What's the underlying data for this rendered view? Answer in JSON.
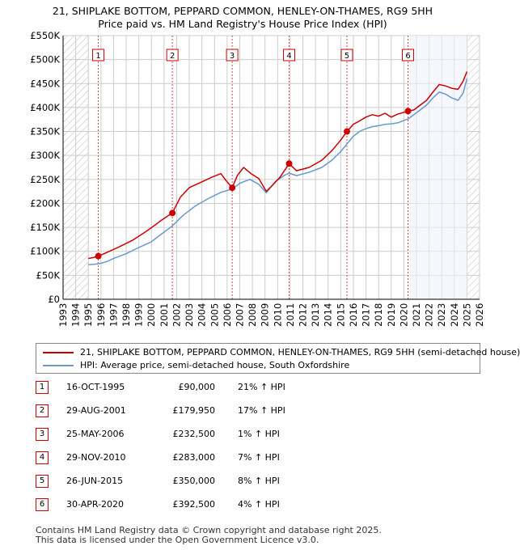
{
  "title": {
    "line1": "21, SHIPLAKE BOTTOM, PEPPARD COMMON, HENLEY-ON-THAMES, RG9 5HH",
    "line2": "Price paid vs. HM Land Registry's House Price Index (HPI)"
  },
  "colors": {
    "property": "#cc0000",
    "hpi": "#6699cc",
    "grid": "#cccccc",
    "hatch": "#bbbbbb",
    "shade": "#eef2fa"
  },
  "chart_data": {
    "type": "line",
    "title": "Price paid vs. HM Land Registry's House Price Index (HPI)",
    "xlim": [
      1993,
      2026
    ],
    "ylim": [
      0,
      550000
    ],
    "y_ticks": [
      0,
      50000,
      100000,
      150000,
      200000,
      250000,
      300000,
      350000,
      400000,
      450000,
      500000,
      550000
    ],
    "y_tick_labels": [
      "£0",
      "£50K",
      "£100K",
      "£150K",
      "£200K",
      "£250K",
      "£300K",
      "£350K",
      "£400K",
      "£450K",
      "£500K",
      "£550K"
    ],
    "x_ticks": [
      1993,
      1994,
      1995,
      1996,
      1997,
      1998,
      1999,
      2000,
      2001,
      2002,
      2003,
      2004,
      2005,
      2006,
      2007,
      2008,
      2009,
      2010,
      2011,
      2012,
      2013,
      2014,
      2015,
      2016,
      2017,
      2018,
      2019,
      2020,
      2021,
      2022,
      2023,
      2024,
      2025,
      2026
    ],
    "hatched_ranges": [
      [
        1993,
        1995.0
      ],
      [
        2025.0,
        2026
      ]
    ],
    "series": [
      {
        "name": "21, SHIPLAKE BOTTOM, PEPPARD COMMON, HENLEY-ON-THAMES, RG9 5HH (semi-detached house)",
        "x": [
          1995.0,
          1995.4,
          1995.79,
          1996.5,
          1997.5,
          1998.5,
          1999.5,
          2000.3,
          2000.8,
          2001.66,
          2002.3,
          2003.0,
          2004.0,
          2004.8,
          2005.5,
          2005.9,
          2006.4,
          2006.8,
          2007.3,
          2007.9,
          2008.5,
          2009.1,
          2009.6,
          2010.2,
          2010.91,
          2011.5,
          2012.5,
          2013.5,
          2014.3,
          2015.0,
          2015.49,
          2016.0,
          2016.5,
          2017.0,
          2017.5,
          2018.0,
          2018.5,
          2019.0,
          2019.5,
          2020.33,
          2020.8,
          2021.3,
          2021.8,
          2022.3,
          2022.8,
          2023.3,
          2023.8,
          2024.3,
          2024.7,
          2025.0
        ],
        "values": [
          85000,
          87000,
          90000,
          98000,
          110000,
          123000,
          140000,
          155000,
          165000,
          179950,
          213000,
          233000,
          245000,
          255000,
          262000,
          248000,
          232500,
          258000,
          275000,
          262000,
          252000,
          225000,
          238000,
          255000,
          283000,
          268000,
          275000,
          290000,
          310000,
          332000,
          350000,
          365000,
          372000,
          380000,
          385000,
          382000,
          388000,
          380000,
          386000,
          392500,
          395000,
          405000,
          415000,
          432000,
          448000,
          445000,
          440000,
          438000,
          455000,
          475000
        ]
      },
      {
        "name": "HPI: Average price, semi-detached house, South Oxfordshire",
        "x": [
          1995.0,
          1995.5,
          1996.0,
          1996.5,
          1997.0,
          1998.0,
          1999.0,
          2000.0,
          2000.5,
          2001.0,
          2001.66,
          2002.5,
          2003.5,
          2004.5,
          2005.5,
          2006.4,
          2007.0,
          2007.8,
          2008.5,
          2009.1,
          2009.8,
          2010.5,
          2010.91,
          2011.5,
          2012.5,
          2013.5,
          2014.3,
          2015.0,
          2015.49,
          2016.0,
          2016.5,
          2017.0,
          2017.5,
          2018.0,
          2018.5,
          2019.0,
          2019.5,
          2020.33,
          2020.8,
          2021.3,
          2021.8,
          2022.3,
          2022.8,
          2023.3,
          2023.8,
          2024.3,
          2024.7,
          2025.0
        ],
        "values": [
          72000,
          73000,
          75000,
          79000,
          85000,
          95000,
          108000,
          120000,
          130000,
          140000,
          153000,
          175000,
          195000,
          210000,
          223000,
          230000,
          242000,
          250000,
          240000,
          222000,
          245000,
          258000,
          263000,
          258000,
          265000,
          275000,
          290000,
          308000,
          324000,
          340000,
          350000,
          356000,
          360000,
          362000,
          365000,
          366000,
          368000,
          376000,
          385000,
          395000,
          405000,
          420000,
          432000,
          428000,
          420000,
          415000,
          430000,
          460000
        ]
      }
    ],
    "annotations": [
      {
        "label": "1",
        "x": 1995.79,
        "value": 90000
      },
      {
        "label": "2",
        "x": 2001.66,
        "value": 179950
      },
      {
        "label": "3",
        "x": 2006.4,
        "value": 232500
      },
      {
        "label": "4",
        "x": 2010.91,
        "value": 283000
      },
      {
        "label": "5",
        "x": 2015.49,
        "value": 350000
      },
      {
        "label": "6",
        "x": 2020.33,
        "value": 392500
      }
    ]
  },
  "legend": {
    "property_label": "21, SHIPLAKE BOTTOM, PEPPARD COMMON, HENLEY-ON-THAMES, RG9 5HH (semi-detached house)",
    "hpi_label": "HPI: Average price, semi-detached house, South Oxfordshire"
  },
  "sales": [
    {
      "num": "1",
      "date": "16-OCT-1995",
      "price": "£90,000",
      "hpi": "21% ↑ HPI"
    },
    {
      "num": "2",
      "date": "29-AUG-2001",
      "price": "£179,950",
      "hpi": "17% ↑ HPI"
    },
    {
      "num": "3",
      "date": "25-MAY-2006",
      "price": "£232,500",
      "hpi": "1% ↑ HPI"
    },
    {
      "num": "4",
      "date": "29-NOV-2010",
      "price": "£283,000",
      "hpi": "7% ↑ HPI"
    },
    {
      "num": "5",
      "date": "26-JUN-2015",
      "price": "£350,000",
      "hpi": "8% ↑ HPI"
    },
    {
      "num": "6",
      "date": "30-APR-2020",
      "price": "£392,500",
      "hpi": "4% ↑ HPI"
    }
  ],
  "footer": {
    "line1": "Contains HM Land Registry data © Crown copyright and database right 2025.",
    "line2": "This data is licensed under the Open Government Licence v3.0."
  }
}
